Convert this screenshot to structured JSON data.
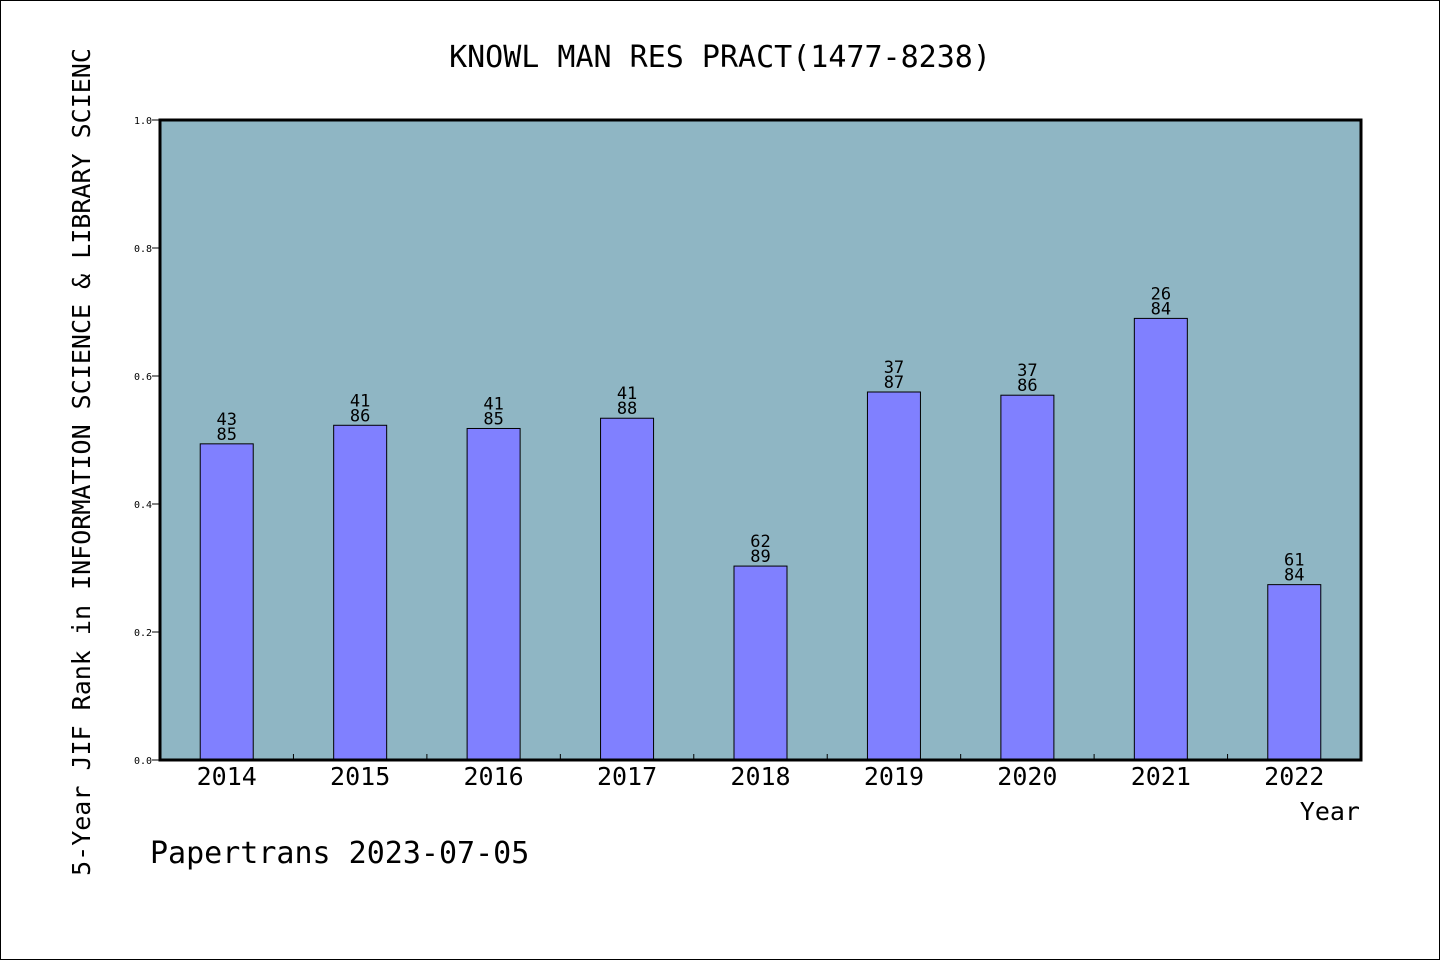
{
  "chart_data": {
    "type": "bar",
    "title": "KNOWL MAN RES PRACT(1477-8238)",
    "xlabel": "Year",
    "ylabel": "5-Year JIF Rank in INFORMATION SCIENCE & LIBRARY SCIENC",
    "categories": [
      "2014",
      "2015",
      "2016",
      "2017",
      "2018",
      "2019",
      "2020",
      "2021",
      "2022"
    ],
    "values": [
      0.494,
      0.523,
      0.518,
      0.534,
      0.303,
      0.575,
      0.57,
      0.69,
      0.274
    ],
    "bar_labels": [
      [
        "43",
        "85"
      ],
      [
        "41",
        "86"
      ],
      [
        "41",
        "85"
      ],
      [
        "41",
        "88"
      ],
      [
        "62",
        "89"
      ],
      [
        "37",
        "87"
      ],
      [
        "37",
        "86"
      ],
      [
        "26",
        "84"
      ],
      [
        "61",
        "84"
      ]
    ],
    "yticks": [
      "0.0",
      "0.2",
      "0.4",
      "0.6",
      "0.8",
      "1.0"
    ],
    "ylim": [
      0,
      1.0
    ],
    "grid": false,
    "colors": {
      "plot_background": "#8fb6c4",
      "bar": "#8080ff",
      "bar_edge": "#000000"
    }
  },
  "footer": {
    "credit": "Papertrans 2023-07-05"
  }
}
